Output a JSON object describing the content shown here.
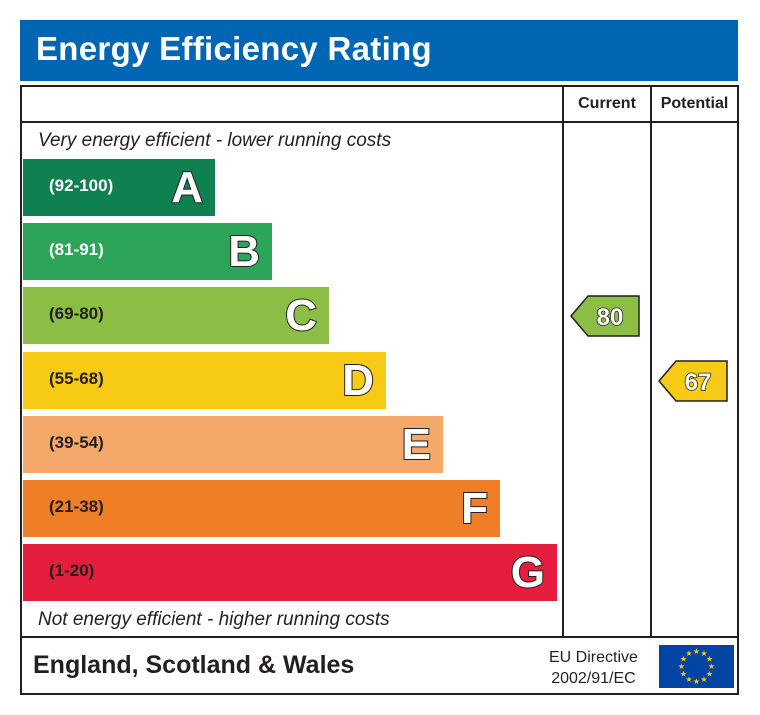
{
  "header": {
    "title": "Energy Efficiency Rating"
  },
  "columns": {
    "current": "Current",
    "potential": "Potential"
  },
  "notes": {
    "top": "Very energy efficient - lower running costs",
    "bottom": "Not energy efficient - higher running costs"
  },
  "chart_data": {
    "type": "bar",
    "categories": [
      "A",
      "B",
      "C",
      "D",
      "E",
      "F",
      "G"
    ],
    "ranges": [
      "(92-100)",
      "(81-91)",
      "(69-80)",
      "(55-68)",
      "(39-54)",
      "(21-38)",
      "(1-20)"
    ],
    "band_colors": [
      "#0f8150",
      "#2ca55a",
      "#8cbe45",
      "#f7cb15",
      "#f4a96a",
      "#ee7f26",
      "#e41e3c"
    ],
    "ratings": {
      "current": {
        "value": 80,
        "band": "C",
        "color": "#8cbe45"
      },
      "potential": {
        "value": 67,
        "band": "D",
        "color": "#f7cb15"
      }
    }
  },
  "footer": {
    "region": "England, Scotland & Wales",
    "directive_line1": "EU Directive",
    "directive_line2": "2002/91/EC",
    "flag_icon": "eu-flag-icon"
  }
}
